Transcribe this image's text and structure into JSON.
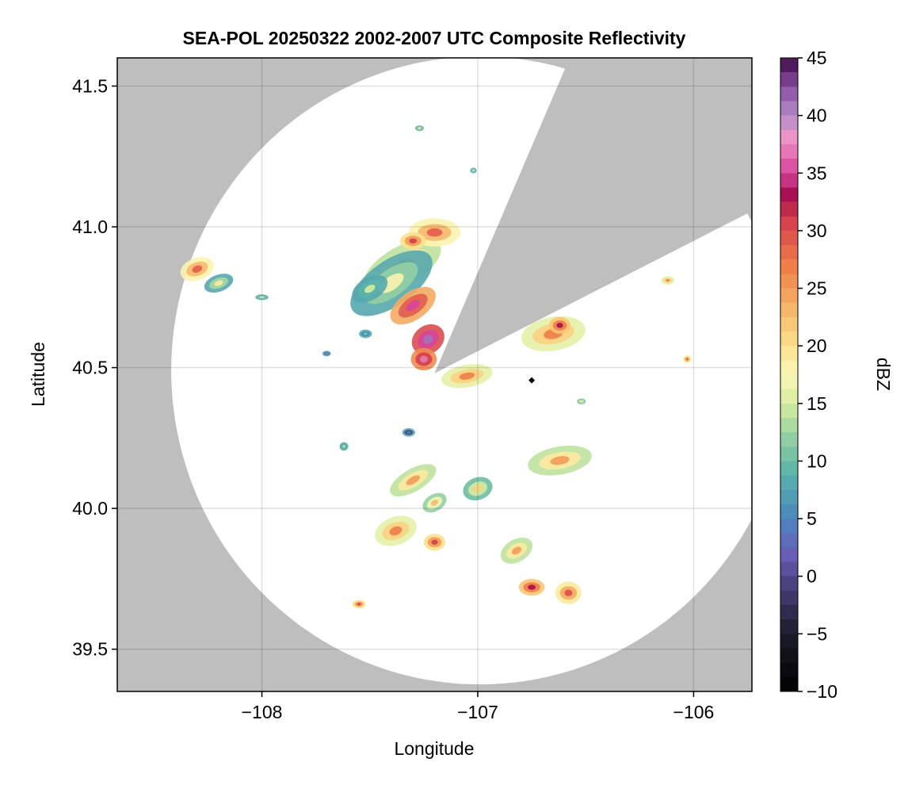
{
  "chart_data": {
    "type": "heatmap",
    "title": "SEA-POL 20250322 2002-2007 UTC Composite Reflectivity",
    "xlabel": "Longitude",
    "ylabel": "Latitude",
    "xlim": [
      -108.67,
      -105.73
    ],
    "ylim": [
      39.35,
      41.6
    ],
    "x_ticks": [
      -108,
      -107,
      -106
    ],
    "x_tick_labels": [
      "−108",
      "−107",
      "−106"
    ],
    "y_ticks": [
      39.5,
      40.0,
      40.5,
      41.0,
      41.5
    ],
    "y_tick_labels": [
      "39.5",
      "40.0",
      "40.5",
      "41.0",
      "41.5"
    ],
    "grid": true,
    "background_color": "#bebebe",
    "radar": {
      "center_lon": -106.99,
      "center_lat": 40.49,
      "range_deg_lat": 1.115,
      "range_deg_lon": 1.43,
      "blocked_sector_deg_from_north": [
        16,
        60
      ]
    },
    "origin_point": {
      "lon": -107.2,
      "lat": 40.48
    },
    "marker": {
      "lon": -106.75,
      "lat": 40.455,
      "shape": "diamond",
      "color": "#000000"
    },
    "cells": [
      {
        "lon": -107.35,
        "lat": 40.86,
        "rlon": 0.2,
        "rlat": 0.07,
        "rot": -30,
        "dbz": 22
      },
      {
        "lon": -107.4,
        "lat": 40.8,
        "rlon": 0.22,
        "rlat": 0.08,
        "rot": -35,
        "dbz": 15
      },
      {
        "lon": -107.3,
        "lat": 40.72,
        "rlon": 0.12,
        "rlat": 0.05,
        "rot": -35,
        "dbz": 32
      },
      {
        "lon": -107.23,
        "lat": 40.6,
        "rlon": 0.08,
        "rlat": 0.05,
        "rot": -35,
        "dbz": 38
      },
      {
        "lon": -107.2,
        "lat": 40.98,
        "rlon": 0.12,
        "rlat": 0.05,
        "rot": 0,
        "dbz": 26
      },
      {
        "lon": -107.3,
        "lat": 40.95,
        "rlon": 0.06,
        "rlat": 0.03,
        "rot": 0,
        "dbz": 28
      },
      {
        "lon": -107.25,
        "lat": 40.53,
        "rlon": 0.06,
        "rlat": 0.04,
        "rot": 0,
        "dbz": 34
      },
      {
        "lon": -107.05,
        "lat": 40.47,
        "rlon": 0.12,
        "rlat": 0.04,
        "rot": -10,
        "dbz": 24
      },
      {
        "lon": -107.5,
        "lat": 40.78,
        "rlon": 0.09,
        "rlat": 0.04,
        "rot": -30,
        "dbz": 12
      },
      {
        "lon": -106.65,
        "lat": 40.62,
        "rlon": 0.15,
        "rlat": 0.06,
        "rot": -10,
        "dbz": 24
      },
      {
        "lon": -106.62,
        "lat": 40.65,
        "rlon": 0.05,
        "rlat": 0.03,
        "rot": 0,
        "dbz": 30
      },
      {
        "lon": -108.3,
        "lat": 40.85,
        "rlon": 0.08,
        "rlat": 0.04,
        "rot": -20,
        "dbz": 26
      },
      {
        "lon": -108.2,
        "lat": 40.8,
        "rlon": 0.07,
        "rlat": 0.03,
        "rot": -20,
        "dbz": 16
      },
      {
        "lon": -106.62,
        "lat": 40.17,
        "rlon": 0.15,
        "rlat": 0.05,
        "rot": -10,
        "dbz": 22
      },
      {
        "lon": -107.3,
        "lat": 40.1,
        "rlon": 0.12,
        "rlat": 0.04,
        "rot": -30,
        "dbz": 22
      },
      {
        "lon": -107.2,
        "lat": 40.02,
        "rlon": 0.06,
        "rlat": 0.03,
        "rot": -30,
        "dbz": 20
      },
      {
        "lon": -107.38,
        "lat": 39.92,
        "rlon": 0.1,
        "rlat": 0.05,
        "rot": -20,
        "dbz": 24
      },
      {
        "lon": -107.2,
        "lat": 39.88,
        "rlon": 0.05,
        "rlat": 0.03,
        "rot": 0,
        "dbz": 28
      },
      {
        "lon": -107.0,
        "lat": 40.07,
        "rlon": 0.07,
        "rlat": 0.04,
        "rot": -20,
        "dbz": 18
      },
      {
        "lon": -106.82,
        "lat": 39.85,
        "rlon": 0.08,
        "rlat": 0.04,
        "rot": -30,
        "dbz": 22
      },
      {
        "lon": -106.75,
        "lat": 39.72,
        "rlon": 0.06,
        "rlat": 0.03,
        "rot": 0,
        "dbz": 30
      },
      {
        "lon": -106.58,
        "lat": 39.7,
        "rlon": 0.06,
        "rlat": 0.04,
        "rot": 0,
        "dbz": 27
      },
      {
        "lon": -107.55,
        "lat": 39.66,
        "rlon": 0.03,
        "rlat": 0.015,
        "rot": 0,
        "dbz": 28
      },
      {
        "lon": -106.03,
        "lat": 40.53,
        "rlon": 0.02,
        "rlat": 0.015,
        "rot": 0,
        "dbz": 26
      },
      {
        "lon": -106.12,
        "lat": 40.81,
        "rlon": 0.03,
        "rlat": 0.015,
        "rot": 0,
        "dbz": 24
      },
      {
        "lon": -107.32,
        "lat": 40.27,
        "rlon": 0.03,
        "rlat": 0.015,
        "rot": 0,
        "dbz": 2
      },
      {
        "lon": -107.62,
        "lat": 40.22,
        "rlon": 0.02,
        "rlat": 0.015,
        "rot": 0,
        "dbz": 12
      },
      {
        "lon": -107.52,
        "lat": 40.62,
        "rlon": 0.03,
        "rlat": 0.015,
        "rot": 0,
        "dbz": 8
      },
      {
        "lon": -107.7,
        "lat": 40.55,
        "rlon": 0.02,
        "rlat": 0.01,
        "rot": 0,
        "dbz": 6
      },
      {
        "lon": -107.27,
        "lat": 41.35,
        "rlon": 0.02,
        "rlat": 0.01,
        "rot": 0,
        "dbz": 16
      },
      {
        "lon": -107.02,
        "lat": 41.2,
        "rlon": 0.015,
        "rlat": 0.01,
        "rot": 0,
        "dbz": 14
      },
      {
        "lon": -108.0,
        "lat": 40.75,
        "rlon": 0.03,
        "rlat": 0.01,
        "rot": 0,
        "dbz": 14
      },
      {
        "lon": -106.52,
        "lat": 40.38,
        "rlon": 0.02,
        "rlat": 0.01,
        "rot": 0,
        "dbz": 18
      }
    ],
    "colorbar": {
      "label": "dBZ",
      "min": -10,
      "max": 45,
      "ticks": [
        -10,
        -5,
        0,
        5,
        10,
        15,
        20,
        25,
        30,
        35,
        40,
        45
      ],
      "tick_labels": [
        "−10",
        "−5",
        "0",
        "5",
        "10",
        "15",
        "20",
        "25",
        "30",
        "35",
        "40",
        "45"
      ],
      "stops": [
        {
          "v": -10,
          "c": "#000000"
        },
        {
          "v": -5,
          "c": "#1c1b2a"
        },
        {
          "v": -1,
          "c": "#473f78"
        },
        {
          "v": 2,
          "c": "#6a5fb8"
        },
        {
          "v": 5,
          "c": "#4a86c0"
        },
        {
          "v": 9,
          "c": "#5bb4a8"
        },
        {
          "v": 12,
          "c": "#92cfa3"
        },
        {
          "v": 15,
          "c": "#d6ec9c"
        },
        {
          "v": 17.5,
          "c": "#fbf8b8"
        },
        {
          "v": 20,
          "c": "#fbe08c"
        },
        {
          "v": 24,
          "c": "#f5aa62"
        },
        {
          "v": 27,
          "c": "#ef7c48"
        },
        {
          "v": 31,
          "c": "#d53e4f"
        },
        {
          "v": 33,
          "c": "#a50d4c"
        },
        {
          "v": 35,
          "c": "#d7449c"
        },
        {
          "v": 38,
          "c": "#ef95c7"
        },
        {
          "v": 40,
          "c": "#b28bc6"
        },
        {
          "v": 42.5,
          "c": "#8a4ea2"
        },
        {
          "v": 45,
          "c": "#3d0a45"
        }
      ]
    }
  }
}
